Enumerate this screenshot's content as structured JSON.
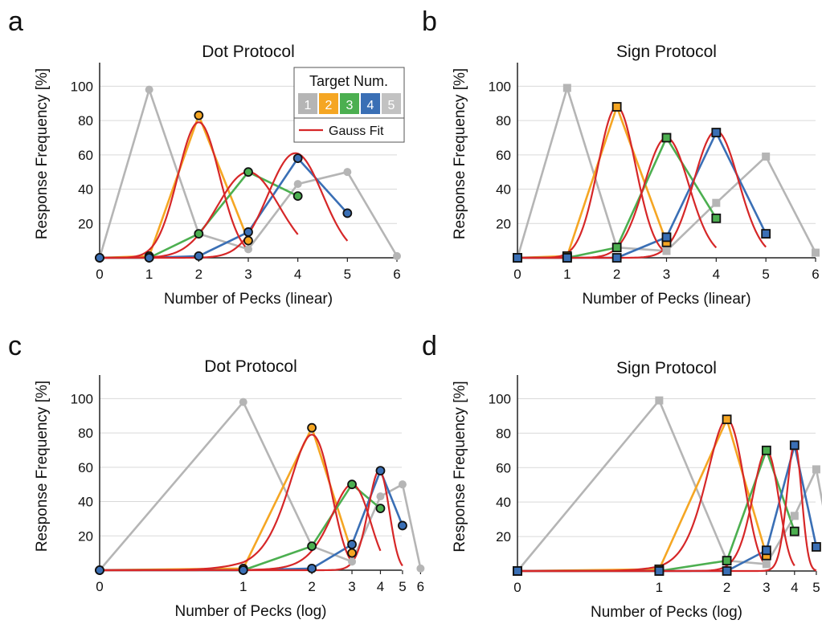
{
  "colors": {
    "target1": "#b5b5b5",
    "target2": "#f5a623",
    "target3": "#4caf50",
    "target4": "#3a6fb5",
    "target5": "#c2c2c2",
    "fit": "#d62728",
    "grid": "#d9d9d9",
    "axis": "#222222"
  },
  "legend": {
    "title": "Target Num.",
    "numbers": [
      "1",
      "2",
      "3",
      "4",
      "5"
    ],
    "fit_label": "Gauss Fit"
  },
  "chart_data": [
    {
      "letter": "a",
      "type": "line",
      "title": "Dot Protocol",
      "xlabel": "Number of Pecks (linear)",
      "ylabel": "Response Frequency [%]",
      "xscale": "linear",
      "x_ticks": [
        "0",
        "1",
        "2",
        "3",
        "4",
        "5",
        "6"
      ],
      "y_ticks": [
        "20",
        "40",
        "60",
        "80",
        "100"
      ],
      "ylim": [
        0,
        110
      ],
      "marker": "circle",
      "grid": true,
      "legend": "top-right",
      "series": [
        {
          "target": 1,
          "x": [
            0,
            1,
            2,
            3,
            4,
            5,
            6
          ],
          "y": [
            0,
            98,
            14,
            5,
            43,
            50,
            1
          ]
        },
        {
          "target": 2,
          "x": [
            0,
            1,
            2,
            3
          ],
          "y": [
            0,
            1,
            83,
            10
          ]
        },
        {
          "target": 3,
          "x": [
            0,
            1,
            2,
            3,
            4
          ],
          "y": [
            0,
            0,
            14,
            50,
            36
          ]
        },
        {
          "target": 4,
          "x": [
            0,
            1,
            2,
            3,
            4,
            5
          ],
          "y": [
            0,
            0,
            1,
            15,
            58,
            26
          ]
        }
      ],
      "fits": [
        {
          "target": 2,
          "amp": 79,
          "mu": 2.0,
          "sigma": 0.42,
          "x_range": [
            0,
            3
          ]
        },
        {
          "target": 3,
          "amp": 50,
          "mu": 3.0,
          "sigma": 0.62,
          "x_range": [
            0,
            4
          ]
        },
        {
          "target": 4,
          "amp": 61,
          "mu": 3.95,
          "sigma": 0.55,
          "x_range": [
            0,
            5
          ]
        }
      ]
    },
    {
      "letter": "b",
      "type": "line",
      "title": "Sign Protocol",
      "xlabel": "Number of Pecks (linear)",
      "ylabel": "Response Frequency [%]",
      "xscale": "linear",
      "x_ticks": [
        "0",
        "1",
        "2",
        "3",
        "4",
        "5",
        "6"
      ],
      "y_ticks": [
        "20",
        "40",
        "60",
        "80",
        "100"
      ],
      "ylim": [
        0,
        110
      ],
      "marker": "square",
      "grid": true,
      "series": [
        {
          "target": 1,
          "x": [
            0,
            1,
            2,
            3,
            4,
            5,
            6
          ],
          "y": [
            0,
            99,
            6,
            4,
            32,
            59,
            3
          ]
        },
        {
          "target": 2,
          "x": [
            0,
            1,
            2,
            3
          ],
          "y": [
            0,
            1,
            88,
            9
          ]
        },
        {
          "target": 3,
          "x": [
            0,
            1,
            2,
            3,
            4
          ],
          "y": [
            0,
            0,
            6,
            70,
            23
          ]
        },
        {
          "target": 4,
          "x": [
            0,
            1,
            2,
            3,
            4,
            5
          ],
          "y": [
            0,
            0,
            0,
            12,
            73,
            14
          ]
        }
      ],
      "fits": [
        {
          "target": 2,
          "amp": 88,
          "mu": 2.0,
          "sigma": 0.38,
          "x_range": [
            0,
            3
          ]
        },
        {
          "target": 3,
          "amp": 70,
          "mu": 3.0,
          "sigma": 0.45,
          "x_range": [
            0,
            4
          ]
        },
        {
          "target": 4,
          "amp": 74,
          "mu": 4.0,
          "sigma": 0.45,
          "x_range": [
            0,
            5
          ]
        }
      ]
    },
    {
      "letter": "c",
      "type": "line",
      "title": "Dot Protocol",
      "xlabel": "Number of Pecks (log)",
      "ylabel": "Response Frequency [%]",
      "xscale": "log",
      "x_ticks": [
        "0",
        "1",
        "2",
        "3",
        "4",
        "5",
        "6"
      ],
      "y_ticks": [
        "20",
        "40",
        "60",
        "80",
        "100"
      ],
      "ylim": [
        0,
        110
      ],
      "marker": "circle",
      "grid": true,
      "series": [
        {
          "target": 1,
          "x": [
            0,
            1,
            2,
            3,
            4,
            5,
            6
          ],
          "y": [
            0,
            98,
            14,
            5,
            43,
            50,
            1
          ]
        },
        {
          "target": 2,
          "x": [
            0,
            1,
            2,
            3
          ],
          "y": [
            0,
            1,
            83,
            10
          ]
        },
        {
          "target": 3,
          "x": [
            0,
            1,
            2,
            3,
            4
          ],
          "y": [
            0,
            0,
            14,
            50,
            36
          ]
        },
        {
          "target": 4,
          "x": [
            0,
            1,
            2,
            3,
            4,
            5
          ],
          "y": [
            0,
            0,
            1,
            15,
            58,
            26
          ]
        }
      ],
      "fits": [
        {
          "target": 2,
          "amp": 79,
          "mu": 2.0,
          "sigma": 0.42,
          "x_range": [
            0,
            3
          ]
        },
        {
          "target": 3,
          "amp": 50,
          "mu": 3.0,
          "sigma": 0.58,
          "x_range": [
            0,
            4
          ]
        },
        {
          "target": 4,
          "amp": 58,
          "mu": 3.95,
          "sigma": 0.42,
          "x_range": [
            0,
            5
          ]
        }
      ]
    },
    {
      "letter": "d",
      "type": "line",
      "title": "Sign Protocol",
      "xlabel": "Number of Pecks (log)",
      "ylabel": "Response Frequency [%]",
      "xscale": "log",
      "x_ticks": [
        "0",
        "1",
        "2",
        "3",
        "4",
        "5",
        "6"
      ],
      "y_ticks": [
        "20",
        "40",
        "60",
        "80",
        "100"
      ],
      "ylim": [
        0,
        110
      ],
      "marker": "square",
      "grid": true,
      "series": [
        {
          "target": 1,
          "x": [
            0,
            1,
            2,
            3,
            4,
            5,
            6
          ],
          "y": [
            0,
            99,
            6,
            4,
            32,
            59,
            3
          ]
        },
        {
          "target": 2,
          "x": [
            0,
            1,
            2,
            3
          ],
          "y": [
            0,
            1,
            88,
            9
          ]
        },
        {
          "target": 3,
          "x": [
            0,
            1,
            2,
            3,
            4
          ],
          "y": [
            0,
            0,
            6,
            70,
            23
          ]
        },
        {
          "target": 4,
          "x": [
            0,
            1,
            2,
            3,
            4,
            5
          ],
          "y": [
            0,
            0,
            0,
            12,
            73,
            14
          ]
        }
      ],
      "fits": [
        {
          "target": 2,
          "amp": 88,
          "mu": 2.0,
          "sigma": 0.38,
          "x_range": [
            0,
            3
          ]
        },
        {
          "target": 3,
          "amp": 70,
          "mu": 3.0,
          "sigma": 0.4,
          "x_range": [
            0,
            4
          ]
        },
        {
          "target": 4,
          "amp": 74,
          "mu": 4.0,
          "sigma": 0.3,
          "x_range": [
            0,
            5
          ]
        }
      ]
    }
  ]
}
